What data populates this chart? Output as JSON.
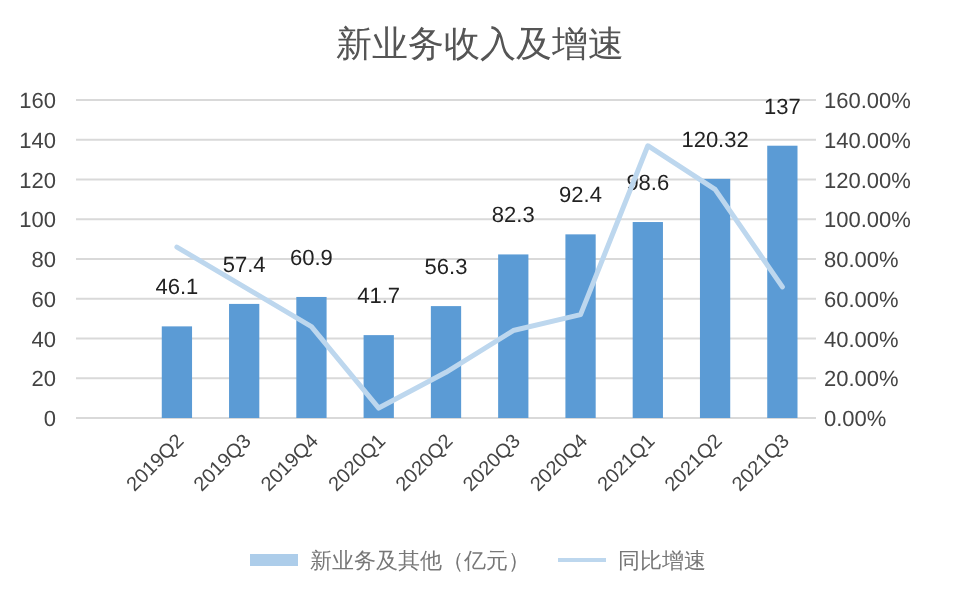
{
  "chart_data": {
    "type": "bar",
    "title": "新业务收入及增速",
    "categories": [
      null,
      "2019Q2",
      "2019Q3",
      "2019Q4",
      "2020Q1",
      "2020Q2",
      "2020Q3",
      "2020Q4",
      "2021Q1",
      "2021Q2",
      "2021Q3"
    ],
    "series": [
      {
        "name": "新业务及其他（亿元）",
        "color": "#5b9bd5",
        "values": [
          null,
          46.1,
          57.4,
          60.9,
          41.7,
          56.3,
          82.3,
          92.4,
          98.6,
          120.32,
          137
        ],
        "value_labels": [
          null,
          "46.1",
          "57.4",
          "60.9",
          "41.7",
          "56.3",
          "82.3",
          "92.4",
          "98.6",
          "120.32",
          "137"
        ]
      },
      {
        "name": "同比增速",
        "type": "line",
        "axis": "y2",
        "color": "#bdd7ee",
        "values": [
          null,
          86,
          66,
          46,
          5,
          23,
          44,
          52,
          137,
          115,
          66
        ]
      }
    ],
    "ylim": [
      0,
      160
    ],
    "yticks": [
      0,
      20,
      40,
      60,
      80,
      100,
      120,
      140,
      160
    ],
    "y2lim": [
      0,
      160
    ],
    "y2ticks": [
      {
        "value": 0,
        "label": "0.00%"
      },
      {
        "value": 20,
        "label": "20.00%"
      },
      {
        "value": 40,
        "label": "40.00%"
      },
      {
        "value": 60,
        "label": "60.00%"
      },
      {
        "value": 80,
        "label": "80.00%"
      },
      {
        "value": 100,
        "label": "100.00%"
      },
      {
        "value": 120,
        "label": "120.00%"
      },
      {
        "value": 140,
        "label": "140.00%"
      },
      {
        "value": 160,
        "label": "160.00%"
      }
    ],
    "grid": "y",
    "legend": "bottom",
    "marker": "none",
    "line_style": "solid"
  }
}
